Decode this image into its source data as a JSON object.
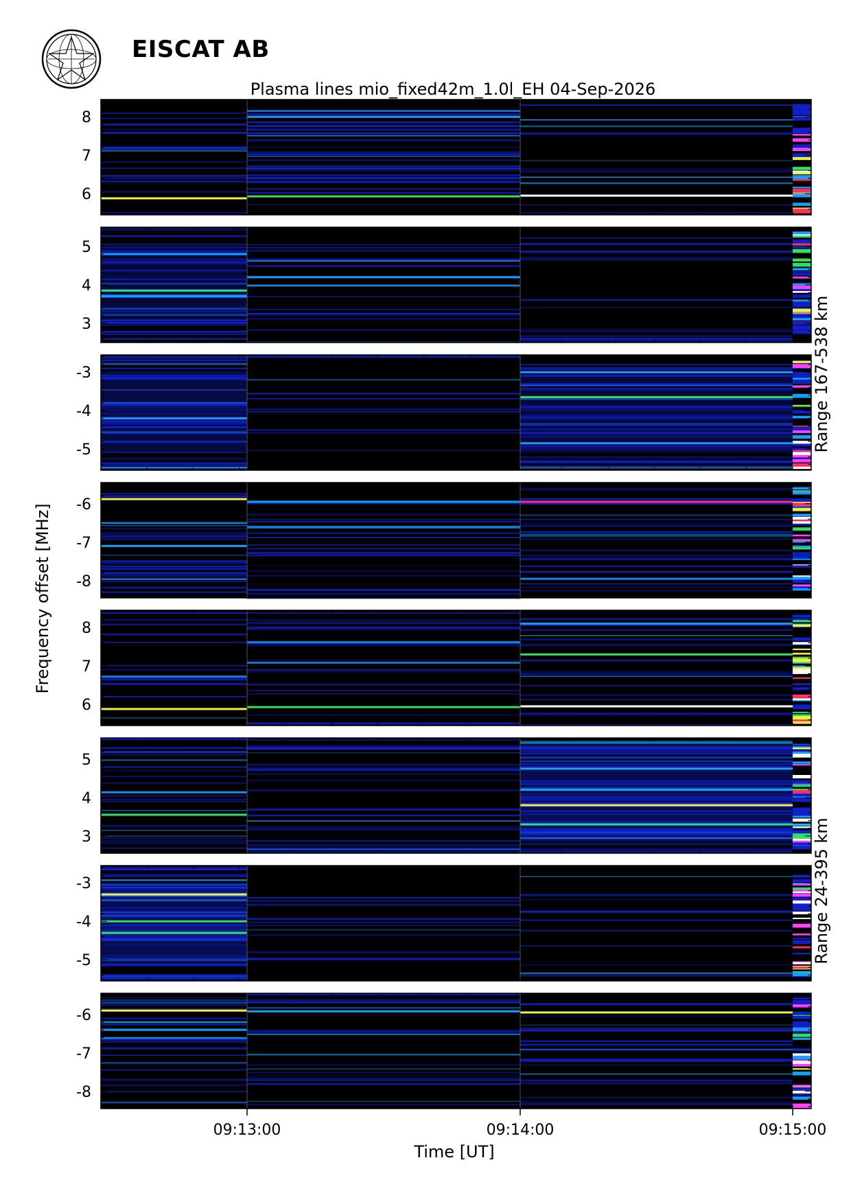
{
  "header": {
    "organization": "EISCAT AB",
    "logo": "eiscat-emblem"
  },
  "chart_data": {
    "type": "heatmap",
    "title": "Plasma lines   mio_fixed42m_1.0l_EH  04-Sep-2026",
    "xlabel": "Time [UT]",
    "ylabel": "Frequency offset [MHz]",
    "x_range": [
      "09:12:30",
      "09:15:00"
    ],
    "x_ticks": [
      "09:13:00",
      "09:14:00",
      "09:15:00"
    ],
    "time_segments": [
      "09:12:30-09:13:00",
      "09:13:00-09:14:00",
      "09:14:00-09:15:00"
    ],
    "colors": {
      "background": "#000000",
      "low": "#1020c8",
      "mid": "#10a0ff",
      "green": "#30e060",
      "yellow": "#f0f040",
      "red": "#ff3060",
      "magenta": "#ff40ff",
      "white": "#ffffff"
    },
    "range_groups": [
      {
        "label": "Range 167-538 km",
        "panels": [
          0,
          1,
          2,
          3
        ]
      },
      {
        "label": "Range 24-395 km",
        "panels": [
          4,
          5,
          6,
          7
        ]
      }
    ],
    "panels": [
      {
        "ylim": [
          5.45,
          8.45
        ],
        "yticks": [
          "6",
          "7",
          "8"
        ],
        "tick_values": [
          6,
          7,
          8
        ],
        "fill": [
          0.15,
          0.45,
          0.05
        ],
        "lines": [
          {
            "freq": 5.88,
            "seg": 0,
            "color": "yellow"
          },
          {
            "freq": 5.93,
            "seg": 1,
            "color": "green"
          },
          {
            "freq": 5.95,
            "seg": 2,
            "color": "white"
          },
          {
            "freq": 7.2,
            "seg": 0,
            "color": "low"
          },
          {
            "freq": 8.0,
            "seg": 1,
            "color": "mid"
          }
        ]
      },
      {
        "ylim": [
          2.5,
          5.5
        ],
        "yticks": [
          "3",
          "4",
          "5"
        ],
        "tick_values": [
          3,
          4,
          5
        ],
        "fill": [
          0.55,
          0.12,
          0.1
        ],
        "lines": [
          {
            "freq": 3.85,
            "seg": 0,
            "color": "green"
          },
          {
            "freq": 3.7,
            "seg": 0,
            "color": "mid"
          },
          {
            "freq": 4.2,
            "seg": 1,
            "color": "mid"
          },
          {
            "freq": 4.8,
            "seg": 0,
            "color": "mid"
          }
        ]
      },
      {
        "ylim": [
          -5.55,
          -2.55
        ],
        "yticks": [
          "-3",
          "-4",
          "-5"
        ],
        "tick_values": [
          -3,
          -4,
          -5
        ],
        "fill": [
          0.7,
          0.02,
          0.65
        ],
        "lines": [
          {
            "freq": -3.65,
            "seg": 2,
            "color": "green"
          },
          {
            "freq": -3.0,
            "seg": 2,
            "color": "mid"
          },
          {
            "freq": -4.2,
            "seg": 0,
            "color": "mid"
          },
          {
            "freq": -4.85,
            "seg": 2,
            "color": "mid"
          }
        ]
      },
      {
        "ylim": [
          -8.45,
          -5.45
        ],
        "yticks": [
          "-6",
          "-7",
          "-8"
        ],
        "tick_values": [
          -6,
          -7,
          -8
        ],
        "fill": [
          0.4,
          0.25,
          0.35
        ],
        "lines": [
          {
            "freq": -5.88,
            "seg": 0,
            "color": "yellow"
          },
          {
            "freq": -5.95,
            "seg": 1,
            "color": "mid"
          },
          {
            "freq": -5.95,
            "seg": 2,
            "color": "red"
          },
          {
            "freq": -7.1,
            "seg": 0,
            "color": "mid"
          }
        ]
      },
      {
        "ylim": [
          5.45,
          8.45
        ],
        "yticks": [
          "6",
          "7",
          "8"
        ],
        "tick_values": [
          6,
          7,
          8
        ],
        "fill": [
          0.12,
          0.22,
          0.3
        ],
        "lines": [
          {
            "freq": 5.88,
            "seg": 0,
            "color": "yellow"
          },
          {
            "freq": 5.93,
            "seg": 1,
            "color": "green"
          },
          {
            "freq": 5.95,
            "seg": 2,
            "color": "white"
          },
          {
            "freq": 7.3,
            "seg": 2,
            "color": "green"
          },
          {
            "freq": 8.1,
            "seg": 2,
            "color": "mid"
          }
        ]
      },
      {
        "ylim": [
          2.55,
          5.55
        ],
        "yticks": [
          "3",
          "4",
          "5"
        ],
        "tick_values": [
          3,
          4,
          5
        ],
        "fill": [
          0.3,
          0.3,
          0.85
        ],
        "lines": [
          {
            "freq": 3.55,
            "seg": 0,
            "color": "green"
          },
          {
            "freq": 3.8,
            "seg": 2,
            "color": "yellow"
          },
          {
            "freq": 3.3,
            "seg": 2,
            "color": "green"
          },
          {
            "freq": 4.2,
            "seg": 2,
            "color": "mid"
          },
          {
            "freq": 4.75,
            "seg": 2,
            "color": "mid"
          }
        ]
      },
      {
        "ylim": [
          -5.55,
          -2.55
        ],
        "yticks": [
          "-3",
          "-4",
          "-5"
        ],
        "tick_values": [
          -3,
          -4,
          -5
        ],
        "fill": [
          0.9,
          0.05,
          0.05
        ],
        "lines": [
          {
            "freq": -3.3,
            "seg": 0,
            "color": "yellow"
          },
          {
            "freq": -4.0,
            "seg": 0,
            "color": "green"
          },
          {
            "freq": -4.3,
            "seg": 0,
            "color": "green"
          },
          {
            "freq": -3.75,
            "seg": 2,
            "color": "low"
          }
        ]
      },
      {
        "ylim": [
          -8.45,
          -5.45
        ],
        "yticks": [
          "-6",
          "-7",
          "-8"
        ],
        "tick_values": [
          -6,
          -7,
          -8
        ],
        "fill": [
          0.3,
          0.2,
          0.25
        ],
        "lines": [
          {
            "freq": -5.9,
            "seg": 0,
            "color": "yellow"
          },
          {
            "freq": -5.92,
            "seg": 1,
            "color": "mid"
          },
          {
            "freq": -5.95,
            "seg": 2,
            "color": "yellow"
          },
          {
            "freq": -6.4,
            "seg": 0,
            "color": "mid"
          }
        ]
      }
    ]
  }
}
